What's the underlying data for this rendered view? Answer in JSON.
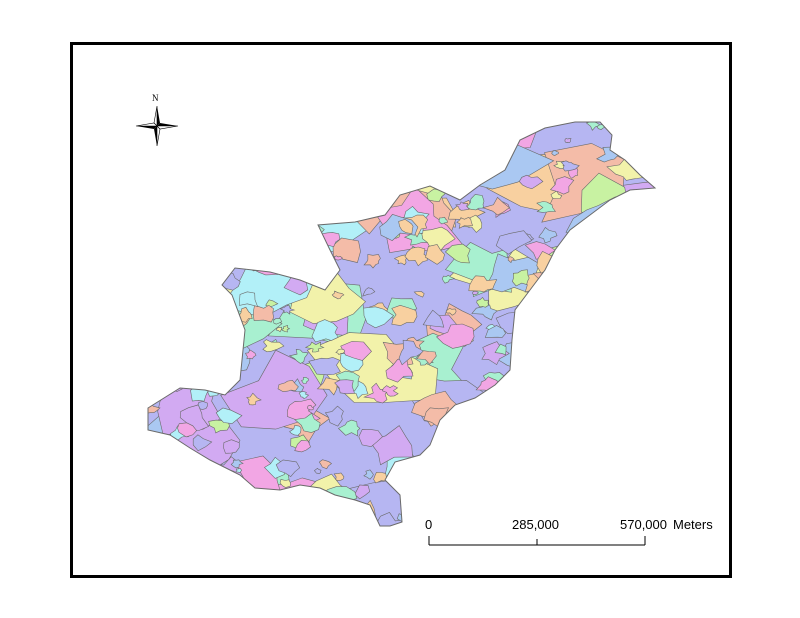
{
  "map": {
    "north_arrow": {
      "label": "N",
      "icon": "north-arrow-icon"
    },
    "scale_bar": {
      "ticks": [
        "0",
        "285,000",
        "570,000"
      ],
      "unit": "Meters"
    },
    "palette": [
      "#f2a6e4",
      "#b6b6f2",
      "#c8f2a2",
      "#b2f0f8",
      "#f2f2aa",
      "#f4bca8",
      "#aac8f2",
      "#d2aaf2",
      "#a8f0d0",
      "#f8d0a0"
    ],
    "outline_color": "#6a6a6a"
  }
}
